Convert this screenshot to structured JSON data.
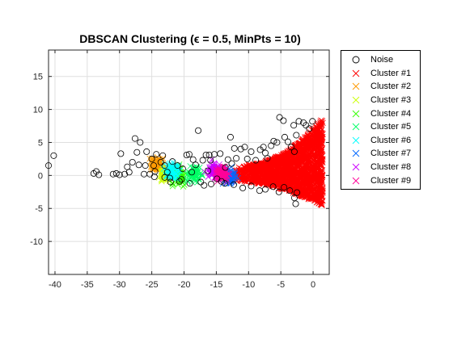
{
  "chart_data": {
    "type": "scatter",
    "title": "DBSCAN Clustering (ϵ = 0.5, MinPts = 10)",
    "xlabel": "",
    "ylabel": "",
    "xlim": [
      -41,
      2.5
    ],
    "ylim": [
      -15,
      19
    ],
    "xticks": [
      -40,
      -35,
      -30,
      -25,
      -20,
      -15,
      -10,
      -5,
      0
    ],
    "yticks": [
      -10,
      -5,
      0,
      5,
      10,
      15
    ],
    "grid": true,
    "legend_position": "outside-right",
    "series": [
      {
        "name": "Noise",
        "marker": "circle",
        "color": "#000000",
        "points": [
          [
            -41,
            1.5
          ],
          [
            -40.2,
            3
          ],
          [
            -34,
            0.3
          ],
          [
            -33.6,
            0.6
          ],
          [
            -33.2,
            0.1
          ],
          [
            -31,
            0.2
          ],
          [
            -30.5,
            0.3
          ],
          [
            -30,
            0.1
          ],
          [
            -29.8,
            3.3
          ],
          [
            -29.2,
            0.2
          ],
          [
            -28.8,
            1.3
          ],
          [
            -28.5,
            0.5
          ],
          [
            -28,
            2
          ],
          [
            -27.6,
            5.6
          ],
          [
            -27.3,
            3.5
          ],
          [
            -27,
            1.6
          ],
          [
            -26.8,
            5
          ],
          [
            -26.2,
            0.2
          ],
          [
            -26,
            1.5
          ],
          [
            -25.8,
            3.6
          ],
          [
            -25.3,
            0.2
          ],
          [
            -25,
            2.5
          ],
          [
            -24.7,
            1.5
          ],
          [
            -24.5,
            0.6
          ],
          [
            -24.3,
            3.2
          ],
          [
            -23.6,
            2
          ],
          [
            -23.3,
            3
          ],
          [
            -23,
            1.5
          ],
          [
            -22.6,
            0.5
          ],
          [
            -22.2,
            -0.4
          ],
          [
            -22.1,
            -1
          ],
          [
            -21.8,
            2.1
          ],
          [
            -21,
            1.5
          ],
          [
            -20.4,
            -0.6
          ],
          [
            -20.2,
            1
          ],
          [
            -19.6,
            3.1
          ],
          [
            -19.2,
            3.2
          ],
          [
            -18.6,
            2.4
          ],
          [
            -18.2,
            1.6
          ],
          [
            -17.8,
            6.8
          ],
          [
            -17.1,
            2.3
          ],
          [
            -17.4,
            -1
          ],
          [
            -16.9,
            -1.5
          ],
          [
            -16.6,
            3.1
          ],
          [
            -16.1,
            3.1
          ],
          [
            -15.9,
            2.3
          ],
          [
            -15.3,
            3.2
          ],
          [
            -14.9,
            -0.5
          ],
          [
            -14.4,
            3.3
          ],
          [
            -14.2,
            -0.9
          ],
          [
            -13.6,
            1.2
          ],
          [
            -13.2,
            2.4
          ],
          [
            -12.8,
            5.8
          ],
          [
            -12.6,
            1.8
          ],
          [
            -12.2,
            4.1
          ],
          [
            -11.9,
            2.6
          ],
          [
            -11.2,
            4
          ],
          [
            -10.6,
            4.3
          ],
          [
            -10.2,
            2.5
          ],
          [
            -9.6,
            3.6
          ],
          [
            -8.9,
            2.3
          ],
          [
            -8.2,
            3.9
          ],
          [
            -7.7,
            4.3
          ],
          [
            -7.4,
            3.4
          ],
          [
            -7.1,
            2.6
          ],
          [
            -6.5,
            4.5
          ],
          [
            -6.1,
            5.2
          ],
          [
            -5.6,
            5
          ],
          [
            -5.2,
            8.8
          ],
          [
            -4.6,
            8.3
          ],
          [
            -4.4,
            5.8
          ],
          [
            -3.9,
            5.1
          ],
          [
            -3.4,
            4.3
          ],
          [
            -3,
            7.6
          ],
          [
            -2.9,
            3.6
          ],
          [
            -2.6,
            6.1
          ],
          [
            -2.2,
            8.2
          ],
          [
            -1.5,
            8
          ],
          [
            -1.1,
            7.6
          ],
          [
            -0.6,
            7.1
          ],
          [
            -0.1,
            8.2
          ],
          [
            -2.5,
            -2.6
          ],
          [
            -2.7,
            -4.3
          ],
          [
            -2.9,
            -3.4
          ],
          [
            -3.6,
            -2.3
          ],
          [
            -4.5,
            -1.8
          ],
          [
            -5.3,
            -2.5
          ],
          [
            -6.2,
            -1.7
          ],
          [
            -7.4,
            -2.1
          ],
          [
            -8.3,
            -2.3
          ],
          [
            -9.6,
            -1.6
          ],
          [
            -10.9,
            -1.9
          ],
          [
            -12.3,
            -1.4
          ],
          [
            -13.7,
            -1.2
          ],
          [
            -15.8,
            -1.3
          ],
          [
            -19.1,
            -1.2
          ],
          [
            -20.7,
            -0.9
          ],
          [
            -23,
            -0.3
          ],
          [
            -24.6,
            -0.2
          ],
          [
            -18.8,
            0.5
          ],
          [
            -16.3,
            0.7
          ]
        ]
      },
      {
        "name": "Cluster #1",
        "marker": "x",
        "color": "#ff0000",
        "region": {
          "x": [
            -12.5,
            1.5
          ],
          "y": [
            -4.5,
            8.5
          ],
          "shape": "fan widening to the right"
        }
      },
      {
        "name": "Cluster #2",
        "marker": "x",
        "color": "#ff9900",
        "center": [
          -24.2,
          1.6
        ]
      },
      {
        "name": "Cluster #3",
        "marker": "x",
        "color": "#cbff00",
        "center": [
          -22.8,
          0.2
        ]
      },
      {
        "name": "Cluster #4",
        "marker": "x",
        "color": "#33ff00",
        "center": [
          -20.8,
          -0.1
        ]
      },
      {
        "name": "Cluster #5",
        "marker": "x",
        "color": "#00ff66",
        "center": [
          -18.3,
          0.2
        ]
      },
      {
        "name": "Cluster #6",
        "marker": "x",
        "color": "#00ffff",
        "center": [
          -21.8,
          0.7
        ]
      },
      {
        "name": "Cluster #7",
        "marker": "x",
        "color": "#0066ff",
        "center": [
          -13.2,
          -0.2
        ]
      },
      {
        "name": "Cluster #8",
        "marker": "x",
        "color": "#cc00ff",
        "center": [
          -15.3,
          0.7
        ]
      },
      {
        "name": "Cluster #9",
        "marker": "x",
        "color": "#ff0099",
        "center": [
          -14.2,
          0.3
        ]
      }
    ]
  }
}
